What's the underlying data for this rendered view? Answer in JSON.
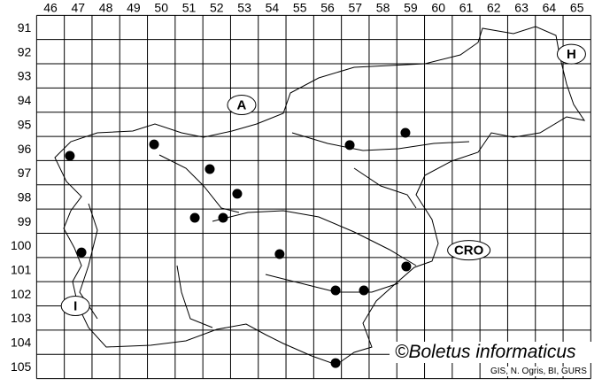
{
  "map": {
    "columns": [
      "46",
      "47",
      "48",
      "49",
      "50",
      "51",
      "52",
      "53",
      "54",
      "55",
      "56",
      "57",
      "58",
      "59",
      "60",
      "61",
      "62",
      "63",
      "64",
      "65"
    ],
    "rows": [
      "91",
      "92",
      "93",
      "94",
      "95",
      "96",
      "97",
      "98",
      "99",
      "100",
      "101",
      "102",
      "103",
      "104",
      "105"
    ],
    "country_labels": [
      {
        "text": "A",
        "col": 52.9,
        "row": 94.2
      },
      {
        "text": "H",
        "col": 64.8,
        "row": 92.1
      },
      {
        "text": "CRO",
        "col": 61.1,
        "row": 100.2
      },
      {
        "text": "I",
        "col": 46.9,
        "row": 102.5
      }
    ],
    "records": [
      {
        "col": 46.7,
        "row": 96.3
      },
      {
        "col": 49.74,
        "row": 95.83
      },
      {
        "col": 51.75,
        "row": 96.85
      },
      {
        "col": 52.74,
        "row": 97.87
      },
      {
        "col": 51.21,
        "row": 98.86
      },
      {
        "col": 52.23,
        "row": 98.86
      },
      {
        "col": 56.8,
        "row": 95.86
      },
      {
        "col": 58.81,
        "row": 95.35
      },
      {
        "col": 47.12,
        "row": 100.29
      },
      {
        "col": 54.27,
        "row": 100.36
      },
      {
        "col": 58.84,
        "row": 100.87
      },
      {
        "col": 56.29,
        "row": 101.86
      },
      {
        "col": 57.31,
        "row": 101.86
      },
      {
        "col": 56.29,
        "row": 104.86
      }
    ],
    "copyright": "©Boletus informaticus",
    "credit": "GIS, N. Ogris, BI, GURS",
    "colors": {
      "grid": "#000000",
      "dot": "#000000",
      "background": "#ffffff"
    }
  }
}
